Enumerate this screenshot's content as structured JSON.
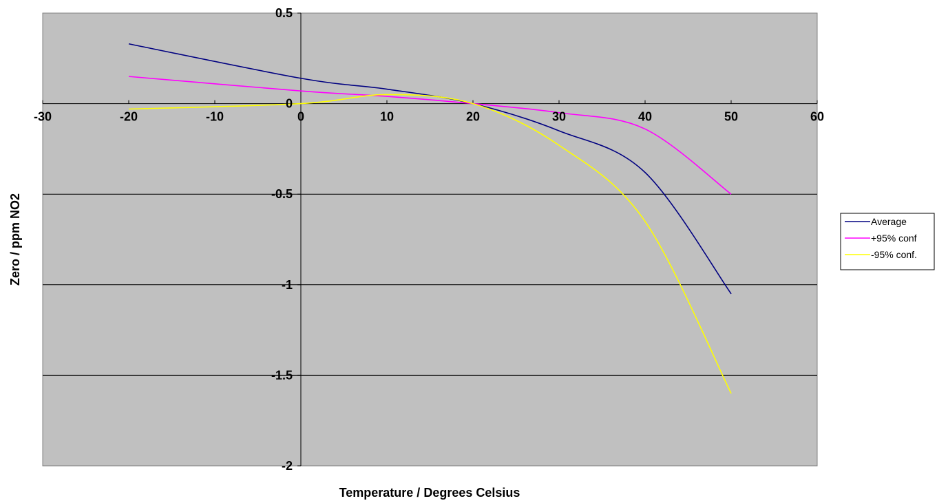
{
  "chart_data": {
    "type": "line",
    "title": "",
    "xlabel": "Temperature / Degrees Celsius",
    "ylabel": "Zero / ppm NO2",
    "xlim": [
      -30,
      60
    ],
    "ylim": [
      -2,
      0.5
    ],
    "x_ticks": [
      "-30",
      "-10",
      "-20",
      "0",
      "10",
      "20",
      "30",
      "40",
      "50",
      "60"
    ],
    "x_tick_values": [
      -30,
      -10,
      -20,
      0,
      10,
      20,
      30,
      40,
      50,
      60
    ],
    "y_ticks": [
      "0.5",
      "0",
      "-0.5",
      "-1",
      "-1.5",
      "-2"
    ],
    "y_tick_values": [
      0.5,
      0,
      -0.5,
      -1,
      -1.5,
      -2
    ],
    "grid": "horizontal",
    "plot_background": "#c0c0c0",
    "legend_position": "right",
    "x": [
      -20,
      0,
      10,
      20,
      30,
      40,
      50
    ],
    "series": [
      {
        "name": "Average",
        "color": "#000080",
        "values": [
          0.33,
          0.14,
          0.08,
          0.0,
          -0.15,
          -0.38,
          -1.05
        ]
      },
      {
        "name": "+95% conf",
        "color": "#ff00ff",
        "values": [
          0.15,
          0.07,
          0.04,
          0.0,
          -0.05,
          -0.14,
          -0.5
        ]
      },
      {
        "name": "-95% conf.",
        "color": "#ffff00",
        "values": [
          -0.03,
          0.0,
          0.05,
          0.0,
          -0.23,
          -0.65,
          -1.6
        ]
      }
    ]
  }
}
